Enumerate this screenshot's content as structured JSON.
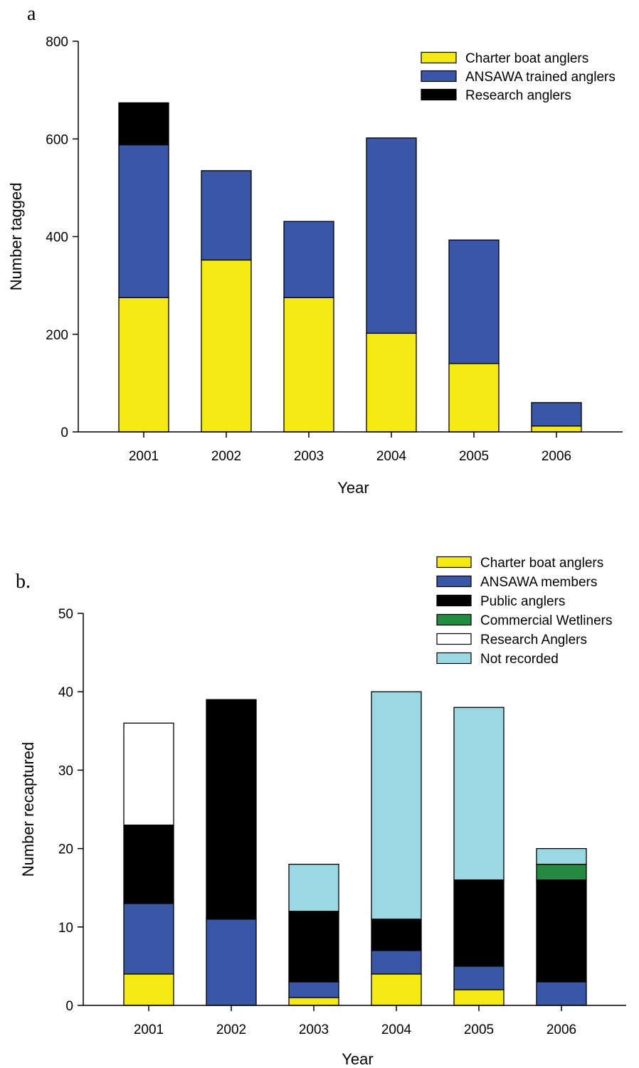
{
  "chart_data": [
    {
      "type": "bar",
      "stacked": true,
      "panel_label": "a",
      "title": "",
      "xlabel": "Year",
      "ylabel": "Number tagged",
      "ylim": [
        0,
        800
      ],
      "yticks": [
        0,
        200,
        400,
        600,
        800
      ],
      "categories": [
        "2001",
        "2002",
        "2003",
        "2004",
        "2005",
        "2006"
      ],
      "legend_position": "top-right",
      "series": [
        {
          "name": "Charter boat anglers",
          "color": "#f5e914",
          "values": [
            275,
            352,
            275,
            202,
            140,
            12
          ]
        },
        {
          "name": "ANSAWA trained anglers",
          "color": "#3a56a6",
          "values": [
            313,
            183,
            156,
            400,
            253,
            48
          ]
        },
        {
          "name": "Research anglers",
          "color": "#000000",
          "values": [
            86,
            0,
            0,
            0,
            0,
            0
          ]
        }
      ]
    },
    {
      "type": "bar",
      "stacked": true,
      "panel_label": "b.",
      "title": "",
      "xlabel": "Year",
      "ylabel": "Number recaptured",
      "ylim": [
        0,
        50
      ],
      "yticks": [
        0,
        10,
        20,
        30,
        40,
        50
      ],
      "categories": [
        "2001",
        "2002",
        "2003",
        "2004",
        "2005",
        "2006"
      ],
      "legend_position": "top-right",
      "series": [
        {
          "name": "Charter boat anglers",
          "color": "#f5e914",
          "values": [
            4,
            0,
            1,
            4,
            2,
            0
          ]
        },
        {
          "name": "ANSAWA members",
          "color": "#3a56a6",
          "values": [
            9,
            11,
            2,
            3,
            3,
            3
          ]
        },
        {
          "name": "Public anglers",
          "color": "#000000",
          "values": [
            10,
            28,
            9,
            4,
            11,
            13
          ]
        },
        {
          "name": "Commercial Wetliners",
          "color": "#238a3f",
          "values": [
            0,
            0,
            0,
            0,
            0,
            2
          ]
        },
        {
          "name": "Research Anglers",
          "color": "#ffffff",
          "values": [
            13,
            0,
            0,
            0,
            0,
            0
          ]
        },
        {
          "name": "Not recorded",
          "color": "#9ad8e4",
          "values": [
            0,
            0,
            6,
            29,
            22,
            2
          ]
        }
      ]
    }
  ]
}
